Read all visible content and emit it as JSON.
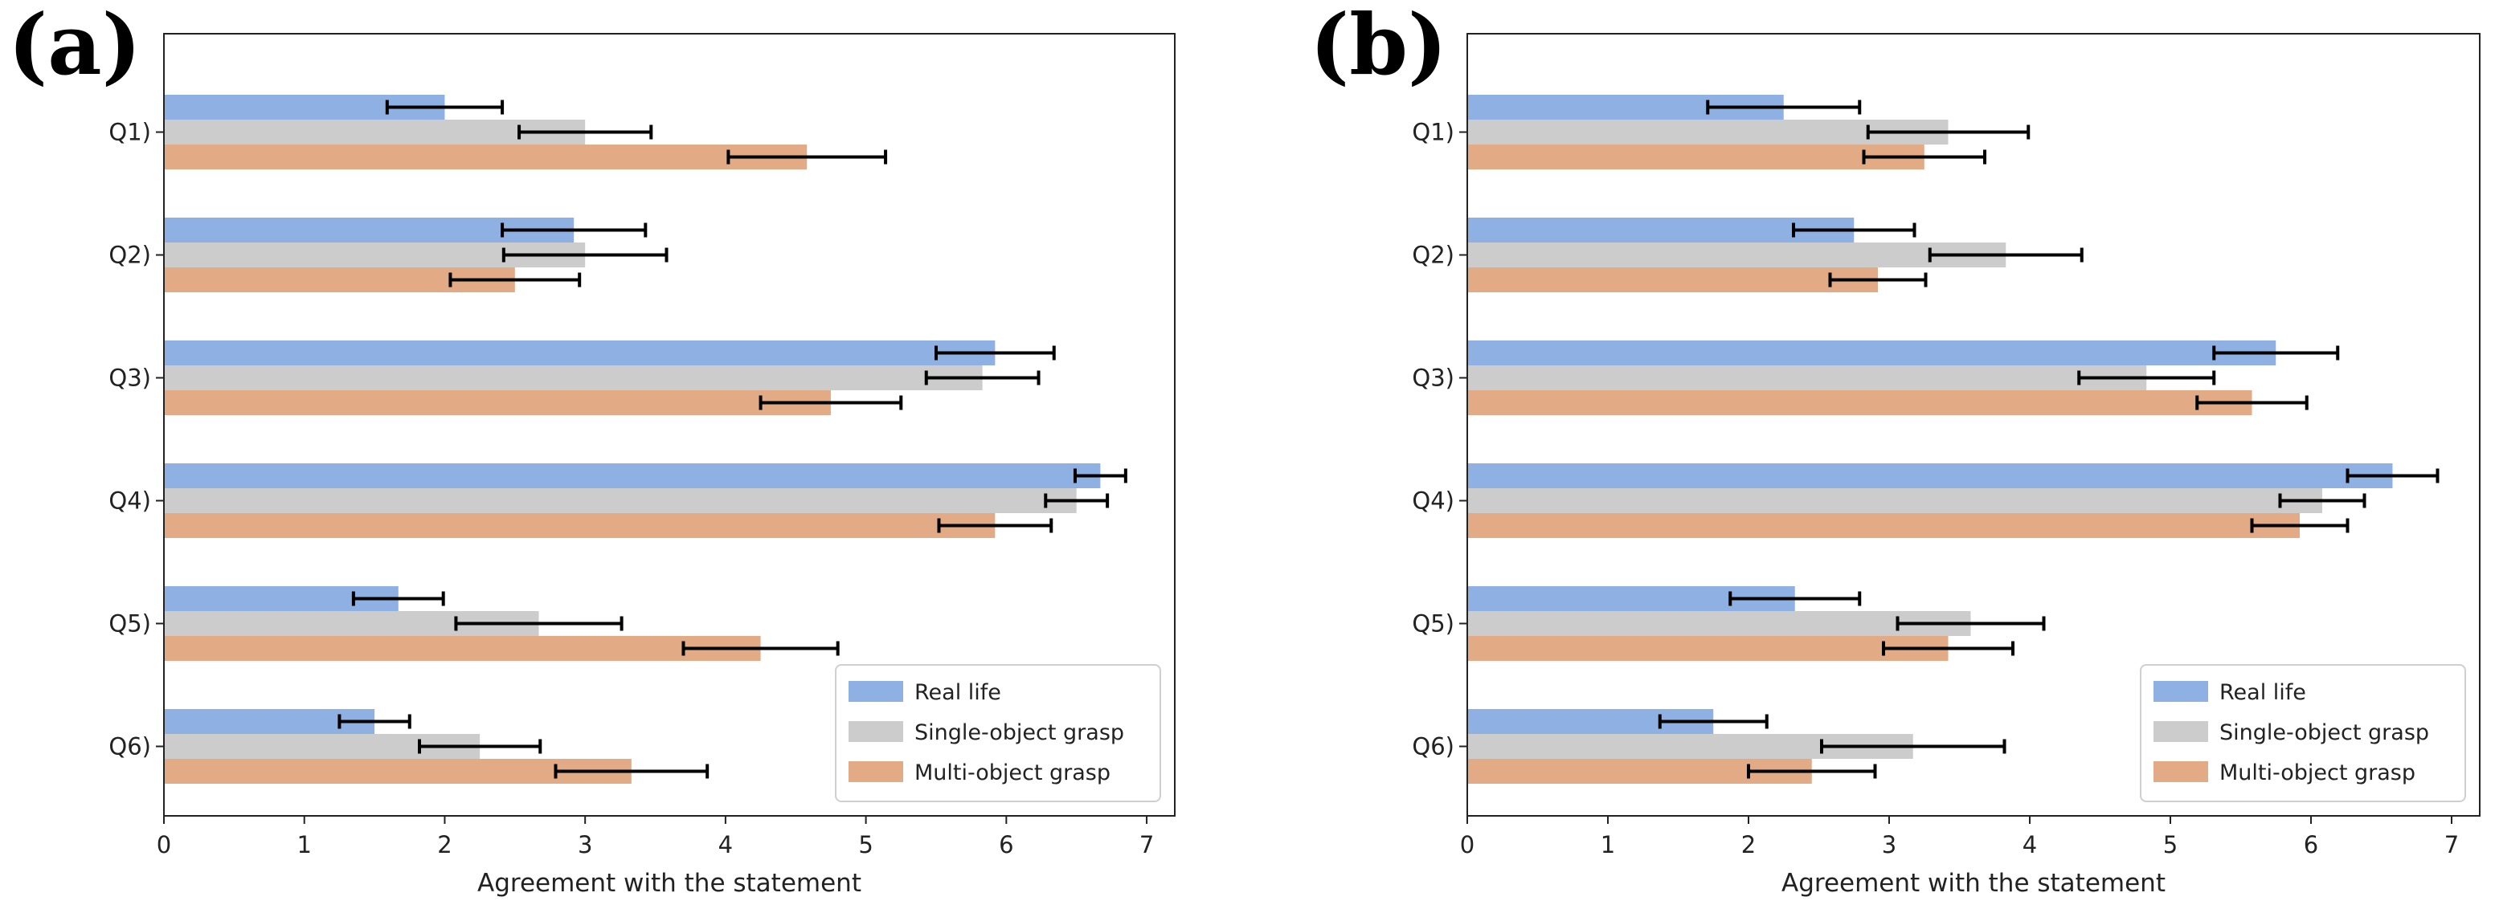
{
  "figure": {
    "series_colors": {
      "Real life": "#8fb0e3",
      "Single-object grasp": "#cccccc",
      "Multi-object grasp": "#e2aa85"
    },
    "error_bar_color": "#000000"
  },
  "chart_data": [
    {
      "panel_label": "(a)",
      "type": "bar",
      "orientation": "horizontal",
      "categories": [
        "Q1)",
        "Q2)",
        "Q3)",
        "Q4)",
        "Q5)",
        "Q6)"
      ],
      "series": [
        {
          "name": "Real life",
          "values": [
            2.0,
            2.92,
            5.92,
            6.67,
            1.67,
            1.5
          ],
          "errors": [
            0.41,
            0.51,
            0.42,
            0.18,
            0.32,
            0.25
          ]
        },
        {
          "name": "Single-object grasp",
          "values": [
            3.0,
            3.0,
            5.83,
            6.5,
            2.67,
            2.25
          ],
          "errors": [
            0.47,
            0.58,
            0.4,
            0.22,
            0.59,
            0.43
          ]
        },
        {
          "name": "Multi-object grasp",
          "values": [
            4.58,
            2.5,
            4.75,
            5.92,
            4.25,
            3.33
          ],
          "errors": [
            0.56,
            0.46,
            0.5,
            0.4,
            0.55,
            0.54
          ]
        }
      ],
      "xlabel": "Agreement with the statement",
      "ylabel": "",
      "xlim": [
        0,
        7.2
      ],
      "xticks": [
        0,
        1,
        2,
        3,
        4,
        5,
        6,
        7
      ],
      "grid": false,
      "legend_position": "lower-right"
    },
    {
      "panel_label": "(b)",
      "type": "bar",
      "orientation": "horizontal",
      "categories": [
        "Q1)",
        "Q2)",
        "Q3)",
        "Q4)",
        "Q5)",
        "Q6)"
      ],
      "series": [
        {
          "name": "Real life",
          "values": [
            2.25,
            2.75,
            5.75,
            6.58,
            2.33,
            1.75
          ],
          "errors": [
            0.54,
            0.43,
            0.44,
            0.32,
            0.46,
            0.38
          ]
        },
        {
          "name": "Single-object grasp",
          "values": [
            3.42,
            3.83,
            4.83,
            6.08,
            3.58,
            3.17
          ],
          "errors": [
            0.57,
            0.54,
            0.48,
            0.3,
            0.52,
            0.65
          ]
        },
        {
          "name": "Multi-object grasp",
          "values": [
            3.25,
            2.92,
            5.58,
            5.92,
            3.42,
            2.45
          ],
          "errors": [
            0.43,
            0.34,
            0.39,
            0.34,
            0.46,
            0.45
          ]
        }
      ],
      "xlabel": "Agreement with the statement",
      "ylabel": "",
      "xlim": [
        0,
        7.2
      ],
      "xticks": [
        0,
        1,
        2,
        3,
        4,
        5,
        6,
        7
      ],
      "grid": false,
      "legend_position": "lower-right"
    }
  ]
}
